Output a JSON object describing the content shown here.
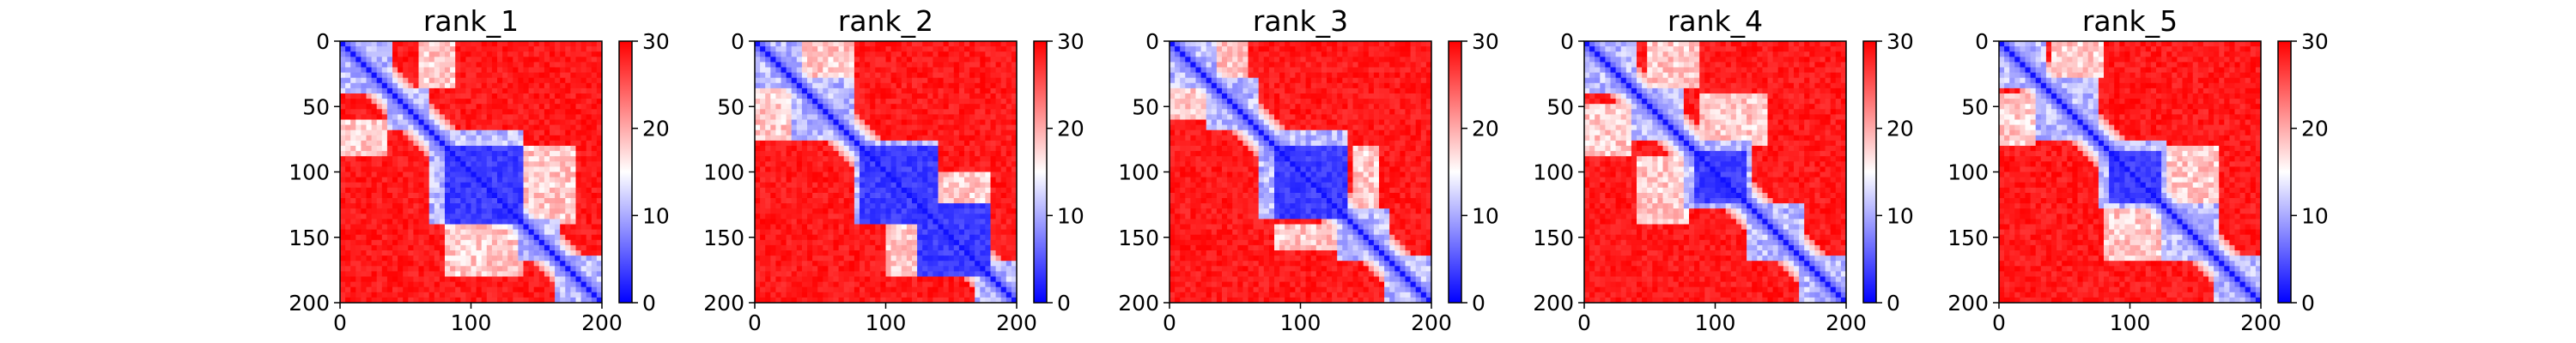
{
  "chart_data": {
    "type": "heatmap",
    "colormap": {
      "name": "bwr",
      "low": "#0000ff",
      "mid": "#ffffff",
      "high": "#ff0000"
    },
    "vmin": 0,
    "vmax": 30,
    "xlim": [
      0,
      200
    ],
    "ylim": [
      200,
      0
    ],
    "xticks": [
      0,
      100,
      200
    ],
    "yticks": [
      0,
      50,
      100,
      150,
      200
    ],
    "colorbar_ticks": [
      0,
      10,
      20,
      30
    ],
    "panels": [
      {
        "title": "rank_1",
        "diagonal_blocks": [
          [
            0,
            40
          ],
          [
            35,
            70
          ],
          [
            70,
            140
          ],
          [
            135,
            170
          ],
          [
            165,
            200
          ]
        ],
        "dense_blocks": [
          [
            80,
            140
          ]
        ],
        "low_regions": [
          [
            0,
            35,
            60,
            90
          ],
          [
            80,
            140,
            140,
            180
          ]
        ]
      },
      {
        "title": "rank_2",
        "diagonal_blocks": [
          [
            0,
            35
          ],
          [
            30,
            75
          ],
          [
            75,
            140
          ],
          [
            125,
            180
          ],
          [
            170,
            200
          ]
        ],
        "dense_blocks": [
          [
            80,
            140
          ],
          [
            125,
            180
          ]
        ],
        "low_regions": [
          [
            0,
            30,
            35,
            75
          ],
          [
            100,
            140,
            130,
            180
          ]
        ]
      },
      {
        "title": "rank_3",
        "diagonal_blocks": [
          [
            0,
            35
          ],
          [
            30,
            70
          ],
          [
            70,
            135
          ],
          [
            130,
            170
          ],
          [
            165,
            200
          ]
        ],
        "dense_blocks": [
          [
            80,
            135
          ]
        ],
        "low_regions": [
          [
            0,
            30,
            30,
            60
          ],
          [
            80,
            135,
            140,
            160
          ]
        ]
      },
      {
        "title": "rank_4",
        "diagonal_blocks": [
          [
            0,
            40
          ],
          [
            35,
            75
          ],
          [
            75,
            130
          ],
          [
            125,
            170
          ],
          [
            165,
            200
          ]
        ],
        "dense_blocks": [
          [
            85,
            125
          ]
        ],
        "low_regions": [
          [
            0,
            35,
            50,
            90
          ],
          [
            40,
            80,
            90,
            140
          ]
        ]
      },
      {
        "title": "rank_5",
        "diagonal_blocks": [
          [
            0,
            35
          ],
          [
            30,
            75
          ],
          [
            75,
            130
          ],
          [
            125,
            170
          ],
          [
            165,
            200
          ]
        ],
        "dense_blocks": [
          [
            85,
            125
          ]
        ],
        "low_regions": [
          [
            0,
            30,
            40,
            80
          ],
          [
            80,
            125,
            130,
            170
          ]
        ]
      }
    ]
  }
}
